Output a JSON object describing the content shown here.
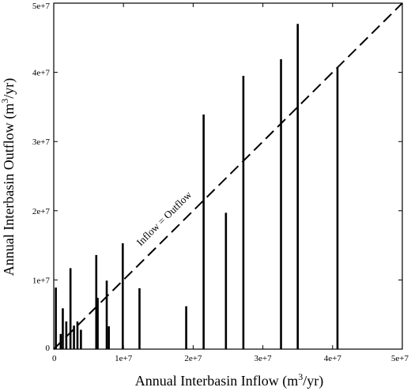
{
  "chart_data": {
    "type": "bar",
    "xlabel": "Annual Interbasin Inflow (m",
    "xlabel_sup": "3",
    "xlabel_end": "/yr)",
    "ylabel": "Annual Interbasin Outflow (m",
    "ylabel_sup": "3",
    "ylabel_end": "/yr)",
    "xlim": [
      0,
      50000000
    ],
    "ylim": [
      0,
      50000000
    ],
    "x_ticks": [
      0,
      10000000,
      20000000,
      30000000,
      40000000,
      50000000
    ],
    "x_tick_labels": [
      "0",
      "1e+7",
      "2e+7",
      "3e+7",
      "4e+7",
      "5e+7"
    ],
    "y_ticks": [
      0,
      10000000,
      20000000,
      30000000,
      40000000,
      50000000
    ],
    "y_tick_labels": [
      "0",
      "1e+7",
      "2e+7",
      "3e+7",
      "4e+7",
      "5e+7"
    ],
    "grid": false,
    "reference_line": {
      "label": "Inflow = Outflow",
      "from": [
        0,
        0
      ],
      "to": [
        50000000,
        50000000
      ]
    },
    "x": [
      300000,
      1000000,
      1300000,
      1800000,
      2400000,
      2900000,
      3400000,
      3900000,
      6100000,
      6300000,
      7600000,
      7900000,
      9900000,
      12300000,
      19000000,
      21500000,
      24700000,
      27200000,
      32600000,
      35000000,
      40700000
    ],
    "values": [
      8900000,
      2200000,
      5900000,
      4000000,
      11700000,
      3400000,
      4000000,
      2800000,
      13600000,
      7400000,
      9900000,
      3300000,
      15300000,
      8800000,
      6200000,
      33900000,
      19700000,
      39500000,
      41900000,
      47000000,
      40700000
    ]
  }
}
